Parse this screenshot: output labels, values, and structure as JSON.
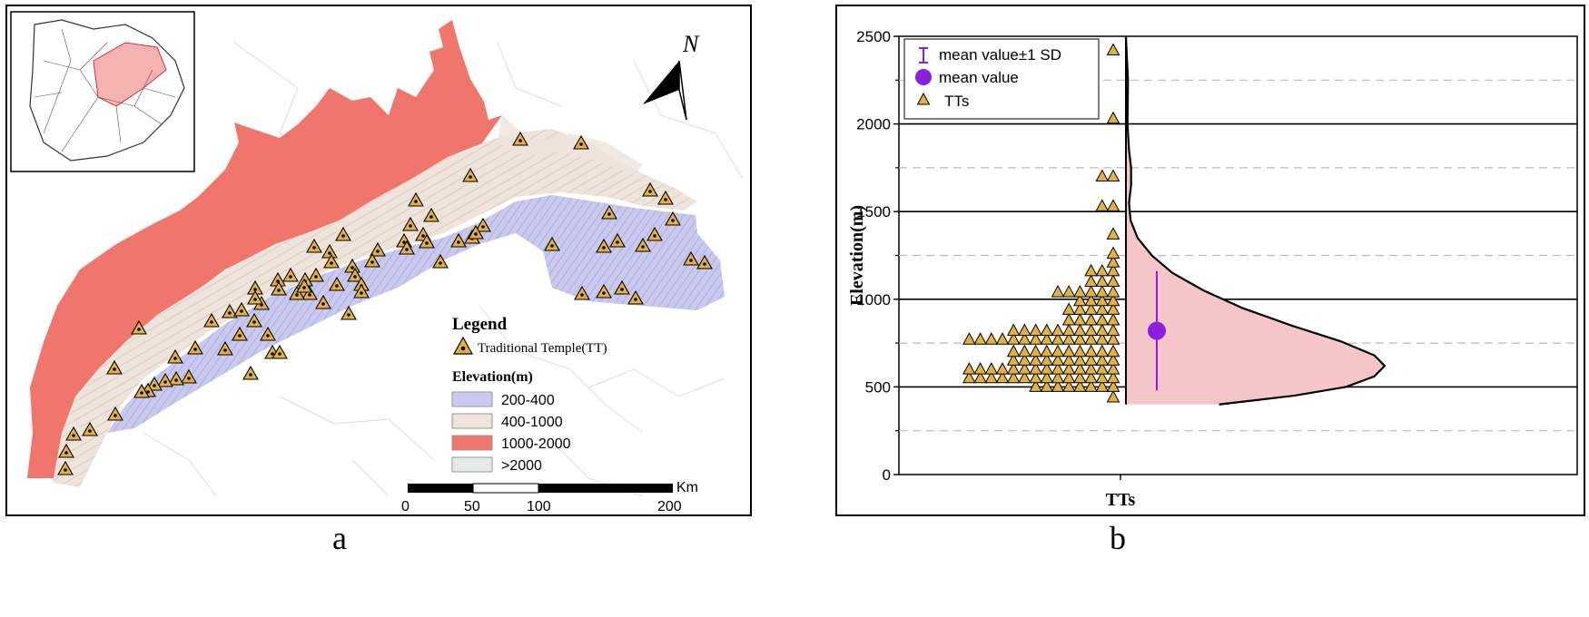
{
  "panel_labels": {
    "a": "a",
    "b": "b"
  },
  "map": {
    "north_label": "N",
    "legend": {
      "title": "Legend",
      "temple_label": "Traditional Temple(TT)",
      "elevation_title": "Elevation(m)",
      "classes": [
        {
          "label": "200-400",
          "color": "#c9c8ee"
        },
        {
          "label": "400-1000",
          "color": "#eee4dc"
        },
        {
          "label": "1000-2000",
          "color": "#f0766c"
        },
        {
          "label": ">2000",
          "color": "#e6eae6"
        }
      ]
    },
    "scale_bar": {
      "unit": "Km",
      "ticks": [
        "0",
        "50",
        "100",
        "200"
      ]
    },
    "colors": {
      "low": "#c9c8ee",
      "mid": "#eee4dc",
      "high": "#f0766c",
      "temple": "#e2b23a"
    }
  },
  "chart_data": {
    "type": "scatter",
    "xlabel": "TTs",
    "ylabel": "Elevation(m)",
    "ylim": [
      0,
      2500
    ],
    "yticks": [
      0,
      500,
      1000,
      1500,
      2000,
      2500
    ],
    "grid": true,
    "legend": [
      "mean value±1 SD",
      "mean value",
      "TTs"
    ],
    "mean": 820,
    "sd_low": 480,
    "sd_high": 1160,
    "bins": [
      {
        "elev": 440,
        "count": 1
      },
      {
        "elev": 500,
        "count": 8
      },
      {
        "elev": 550,
        "count": 14
      },
      {
        "elev": 600,
        "count": 14
      },
      {
        "elev": 650,
        "count": 10
      },
      {
        "elev": 700,
        "count": 10
      },
      {
        "elev": 770,
        "count": 14
      },
      {
        "elev": 820,
        "count": 10
      },
      {
        "elev": 880,
        "count": 5
      },
      {
        "elev": 940,
        "count": 5
      },
      {
        "elev": 990,
        "count": 4
      },
      {
        "elev": 1040,
        "count": 6
      },
      {
        "elev": 1100,
        "count": 3
      },
      {
        "elev": 1160,
        "count": 3
      },
      {
        "elev": 1210,
        "count": 1
      },
      {
        "elev": 1260,
        "count": 1
      },
      {
        "elev": 1370,
        "count": 1
      },
      {
        "elev": 1530,
        "count": 2
      },
      {
        "elev": 1700,
        "count": 2
      },
      {
        "elev": 2030,
        "count": 1
      },
      {
        "elev": 2420,
        "count": 1
      }
    ],
    "density": [
      {
        "elev": 400,
        "d": 0.36
      },
      {
        "elev": 450,
        "d": 0.65
      },
      {
        "elev": 500,
        "d": 0.85
      },
      {
        "elev": 560,
        "d": 0.96
      },
      {
        "elev": 620,
        "d": 1.0
      },
      {
        "elev": 680,
        "d": 0.96
      },
      {
        "elev": 760,
        "d": 0.83
      },
      {
        "elev": 850,
        "d": 0.64
      },
      {
        "elev": 950,
        "d": 0.45
      },
      {
        "elev": 1050,
        "d": 0.3
      },
      {
        "elev": 1150,
        "d": 0.18
      },
      {
        "elev": 1250,
        "d": 0.1
      },
      {
        "elev": 1350,
        "d": 0.045
      },
      {
        "elev": 1450,
        "d": 0.018
      },
      {
        "elev": 1550,
        "d": 0.012
      },
      {
        "elev": 1650,
        "d": 0.02
      },
      {
        "elev": 1750,
        "d": 0.02
      },
      {
        "elev": 1850,
        "d": 0.012
      },
      {
        "elev": 2000,
        "d": 0.006
      },
      {
        "elev": 2250,
        "d": 0.008
      },
      {
        "elev": 2400,
        "d": 0.003
      },
      {
        "elev": 2500,
        "d": 0.0
      }
    ],
    "colors": {
      "violin": "#f5c6c8",
      "mean": "#8b1ee0",
      "marker": "#e2b23a"
    }
  }
}
